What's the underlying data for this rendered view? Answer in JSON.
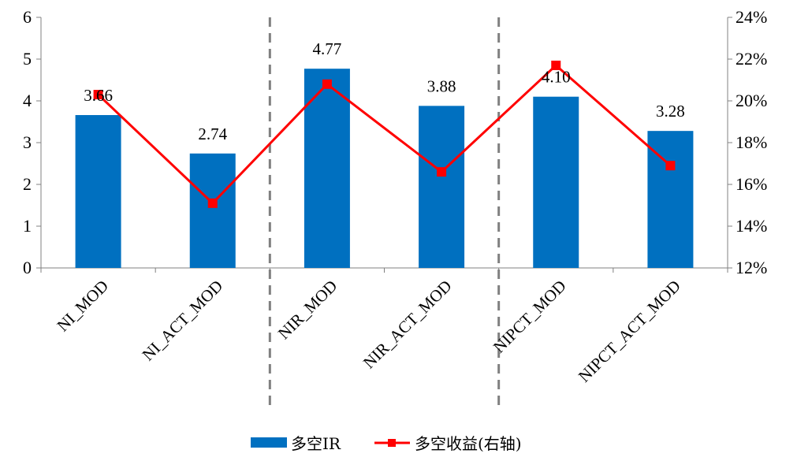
{
  "chart_data": {
    "type": "bar",
    "categories": [
      "NI_MOD",
      "NI_ACT_MOD",
      "NIR_MOD",
      "NIR_ACT_MOD",
      "NIPCT_MOD",
      "NIPCT_ACT_MOD"
    ],
    "series": [
      {
        "name": "多空IR",
        "type": "bar",
        "axis": "left",
        "color": "#0070C0",
        "values": [
          3.66,
          2.74,
          4.77,
          3.88,
          4.1,
          3.28
        ],
        "labels": [
          "3.66",
          "2.74",
          "4.77",
          "3.88",
          "4.10",
          "3.28"
        ]
      },
      {
        "name": "多空收益(右轴)",
        "type": "line",
        "axis": "right",
        "color": "#FF0000",
        "marker": "square",
        "values": [
          0.203,
          0.151,
          0.208,
          0.166,
          0.217,
          0.169
        ]
      }
    ],
    "y_left": {
      "min": 0,
      "max": 6,
      "ticks": [
        "0",
        "1",
        "2",
        "3",
        "4",
        "5",
        "6"
      ]
    },
    "y_right": {
      "min": 0.12,
      "max": 0.24,
      "ticks": [
        "12%",
        "14%",
        "16%",
        "18%",
        "20%",
        "22%",
        "24%"
      ]
    },
    "separators_after_category": [
      2,
      4
    ],
    "separator_color": "#808080",
    "legend_position": "bottom",
    "grid": false
  }
}
